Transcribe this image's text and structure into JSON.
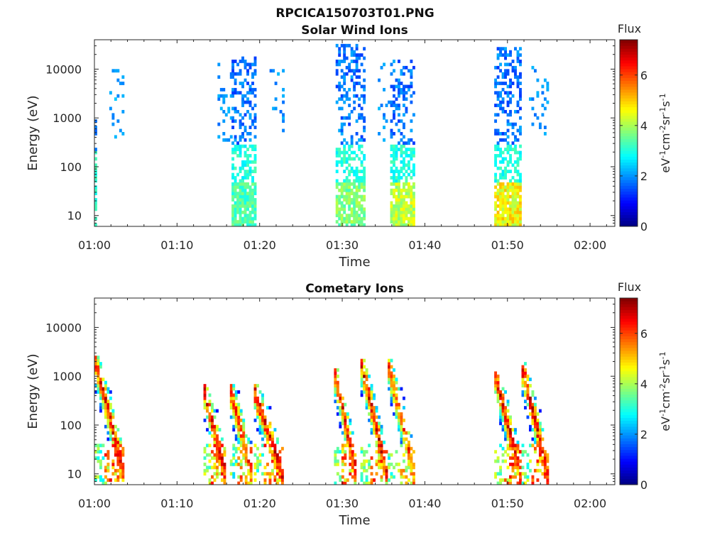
{
  "figure_title": "RPCICA150703T01.PNG",
  "colors": {
    "colormap": [
      "#00007f",
      "#0000ff",
      "#007fff",
      "#00ffff",
      "#7fff7f",
      "#ffff00",
      "#ff7f00",
      "#ff0000",
      "#7f0000"
    ]
  },
  "chart_data": [
    {
      "type": "heatmap",
      "title": "Solar Wind Ions",
      "xlabel": "Time",
      "ylabel": "Energy (eV)",
      "x_ticks": [
        "01:00",
        "01:10",
        "01:20",
        "01:30",
        "01:40",
        "01:50",
        "02:00"
      ],
      "xlim_minutes_after_0100": [
        0,
        63
      ],
      "y_scale": "log",
      "y_ticks": [
        "10",
        "100",
        "1000",
        "10000"
      ],
      "ylim": [
        6,
        40000
      ],
      "colorbar": {
        "title": "Flux",
        "label": "eV-1cm-2sr-1s-1",
        "ticks": [
          "0",
          "2",
          "4",
          "6"
        ],
        "range": [
          0,
          7.4
        ]
      },
      "bursts": [
        {
          "t_start": 0.0,
          "t_end": 0.3,
          "e_low": 6,
          "e_high": 12000,
          "flux_level": 2.2,
          "kind": "edge"
        },
        {
          "t_start": 1.8,
          "t_end": 3.6,
          "e_low": 350,
          "e_high": 10000,
          "flux_level": 1.8,
          "kind": "sparse"
        },
        {
          "t_start": 14.9,
          "t_end": 16.6,
          "e_low": 300,
          "e_high": 14000,
          "flux_level": 1.7,
          "kind": "sparse"
        },
        {
          "t_start": 16.6,
          "t_end": 19.5,
          "e_low": 6,
          "e_high": 16000,
          "flux_level": 3.4,
          "kind": "main"
        },
        {
          "t_start": 21.2,
          "t_end": 23.0,
          "e_low": 300,
          "e_high": 10000,
          "flux_level": 1.7,
          "kind": "sparse"
        },
        {
          "t_start": 29.2,
          "t_end": 32.6,
          "e_low": 6,
          "e_high": 30000,
          "flux_level": 3.8,
          "kind": "main"
        },
        {
          "t_start": 34.3,
          "t_end": 35.8,
          "e_low": 300,
          "e_high": 15000,
          "flux_level": 1.7,
          "kind": "sparse"
        },
        {
          "t_start": 35.8,
          "t_end": 38.6,
          "e_low": 6,
          "e_high": 15000,
          "flux_level": 4.3,
          "kind": "main"
        },
        {
          "t_start": 48.4,
          "t_end": 51.6,
          "e_low": 6,
          "e_high": 28000,
          "flux_level": 4.7,
          "kind": "main"
        },
        {
          "t_start": 52.6,
          "t_end": 54.9,
          "e_low": 400,
          "e_high": 13000,
          "flux_level": 1.7,
          "kind": "sparse"
        }
      ]
    },
    {
      "type": "heatmap",
      "title": "Cometary Ions",
      "xlabel": "Time",
      "ylabel": "Energy (eV)",
      "x_ticks": [
        "01:00",
        "01:10",
        "01:20",
        "01:30",
        "01:40",
        "01:50",
        "02:00"
      ],
      "xlim_minutes_after_0100": [
        0,
        63
      ],
      "y_scale": "log",
      "y_ticks": [
        "10",
        "100",
        "1000",
        "10000"
      ],
      "ylim": [
        6,
        40000
      ],
      "colorbar": {
        "title": "Flux",
        "label": "eV-1cm-2sr-1s-1",
        "ticks": [
          "0",
          "2",
          "4",
          "6"
        ],
        "range": [
          0,
          7.4
        ]
      },
      "bursts": [
        {
          "t_start": 0.0,
          "t_end": 3.6,
          "e_low": 6,
          "e_high": 2500,
          "flux_level": 7.0,
          "kind": "dispersed"
        },
        {
          "t_start": 13.2,
          "t_end": 15.9,
          "e_low": 6,
          "e_high": 600,
          "flux_level": 7.0,
          "kind": "dispersed"
        },
        {
          "t_start": 16.4,
          "t_end": 19.1,
          "e_low": 6,
          "e_high": 600,
          "flux_level": 6.5,
          "kind": "dispersed"
        },
        {
          "t_start": 19.3,
          "t_end": 22.8,
          "e_low": 6,
          "e_high": 600,
          "flux_level": 7.0,
          "kind": "dispersed"
        },
        {
          "t_start": 29.0,
          "t_end": 31.7,
          "e_low": 6,
          "e_high": 1400,
          "flux_level": 6.8,
          "kind": "dispersed"
        },
        {
          "t_start": 32.2,
          "t_end": 35.4,
          "e_low": 6,
          "e_high": 2200,
          "flux_level": 7.0,
          "kind": "dispersed"
        },
        {
          "t_start": 35.5,
          "t_end": 38.8,
          "e_low": 6,
          "e_high": 2000,
          "flux_level": 6.5,
          "kind": "dispersed"
        },
        {
          "t_start": 48.4,
          "t_end": 51.6,
          "e_low": 6,
          "e_high": 1400,
          "flux_level": 7.0,
          "kind": "dispersed"
        },
        {
          "t_start": 51.7,
          "t_end": 54.9,
          "e_low": 6,
          "e_high": 1800,
          "flux_level": 7.0,
          "kind": "dispersed"
        }
      ]
    }
  ]
}
